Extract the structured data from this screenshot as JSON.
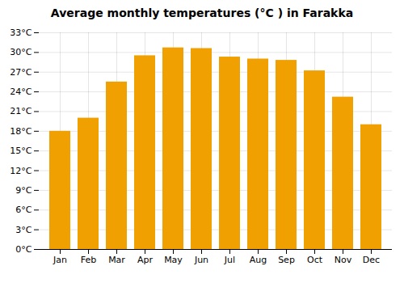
{
  "chart_data": {
    "type": "bar",
    "title": "Average monthly temperatures (°C ) in Farakka",
    "categories": [
      "Jan",
      "Feb",
      "Mar",
      "Apr",
      "May",
      "Jun",
      "Jul",
      "Aug",
      "Sep",
      "Oct",
      "Nov",
      "Dec"
    ],
    "values": [
      18.0,
      20.0,
      25.5,
      29.5,
      30.7,
      30.6,
      29.3,
      29.0,
      28.8,
      27.2,
      23.2,
      19.0
    ],
    "color": "#F0A000",
    "ylim": [
      0,
      33
    ],
    "yticks": [
      {
        "value": 0,
        "label": "0°C"
      },
      {
        "value": 3,
        "label": "3°C"
      },
      {
        "value": 6,
        "label": "6°C"
      },
      {
        "value": 9,
        "label": "9°C"
      },
      {
        "value": 12,
        "label": "12°C"
      },
      {
        "value": 15,
        "label": "15°C"
      },
      {
        "value": 18,
        "label": "18°C"
      },
      {
        "value": 21,
        "label": "21°C"
      },
      {
        "value": 24,
        "label": "24°C"
      },
      {
        "value": 27,
        "label": "27°C"
      },
      {
        "value": 30,
        "label": "30°C"
      },
      {
        "value": 33,
        "label": "33°C"
      }
    ],
    "grid": true
  }
}
